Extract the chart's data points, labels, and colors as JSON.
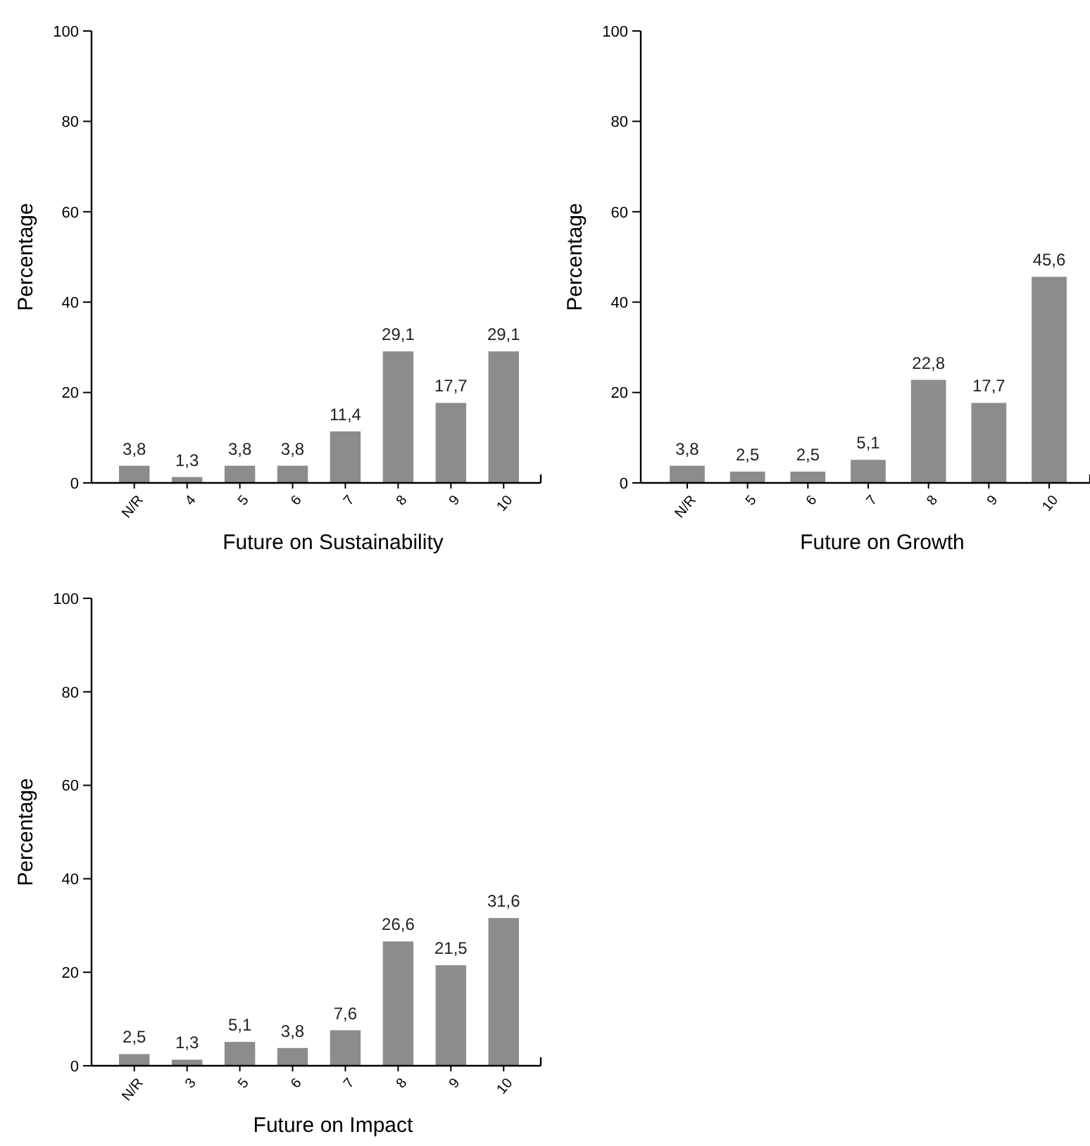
{
  "chart_data": [
    {
      "type": "bar",
      "xlabel": "Future on Sustainability",
      "ylabel": "Percentage",
      "categories": [
        "N/R",
        "4",
        "5",
        "6",
        "7",
        "8",
        "9",
        "10"
      ],
      "values": [
        3.8,
        1.3,
        3.8,
        3.8,
        11.4,
        29.1,
        17.7,
        29.1
      ],
      "value_labels": [
        "3,8",
        "1,3",
        "3,8",
        "3,8",
        "11,4",
        "29,1",
        "17,7",
        "29,1"
      ],
      "color": "#8c8c8c",
      "ylim": [
        0,
        100
      ],
      "yticks": [
        0,
        20,
        40,
        60,
        80,
        100
      ]
    },
    {
      "type": "bar",
      "xlabel": "Future on  Growth",
      "ylabel": "Percentage",
      "categories": [
        "N/R",
        "5",
        "6",
        "7",
        "8",
        "9",
        "10"
      ],
      "values": [
        3.8,
        2.5,
        2.5,
        5.1,
        22.8,
        17.7,
        45.6
      ],
      "value_labels": [
        "3,8",
        "2,5",
        "2,5",
        "5,1",
        "22,8",
        "17,7",
        "45,6"
      ],
      "color": "#8c8c8c",
      "ylim": [
        0,
        100
      ],
      "yticks": [
        0,
        20,
        40,
        60,
        80,
        100
      ]
    },
    {
      "type": "bar",
      "xlabel": "Future on Impact",
      "ylabel": "Percentage",
      "categories": [
        "N/R",
        "3",
        "5",
        "6",
        "7",
        "8",
        "9",
        "10"
      ],
      "values": [
        2.5,
        1.3,
        5.1,
        3.8,
        7.6,
        26.6,
        21.5,
        31.6
      ],
      "value_labels": [
        "2,5",
        "1,3",
        "5,1",
        "3,8",
        "7,6",
        "26,6",
        "21,5",
        "31,6"
      ],
      "color": "#8c8c8c",
      "ylim": [
        0,
        100
      ],
      "yticks": [
        0,
        20,
        40,
        60,
        80,
        100
      ]
    }
  ]
}
